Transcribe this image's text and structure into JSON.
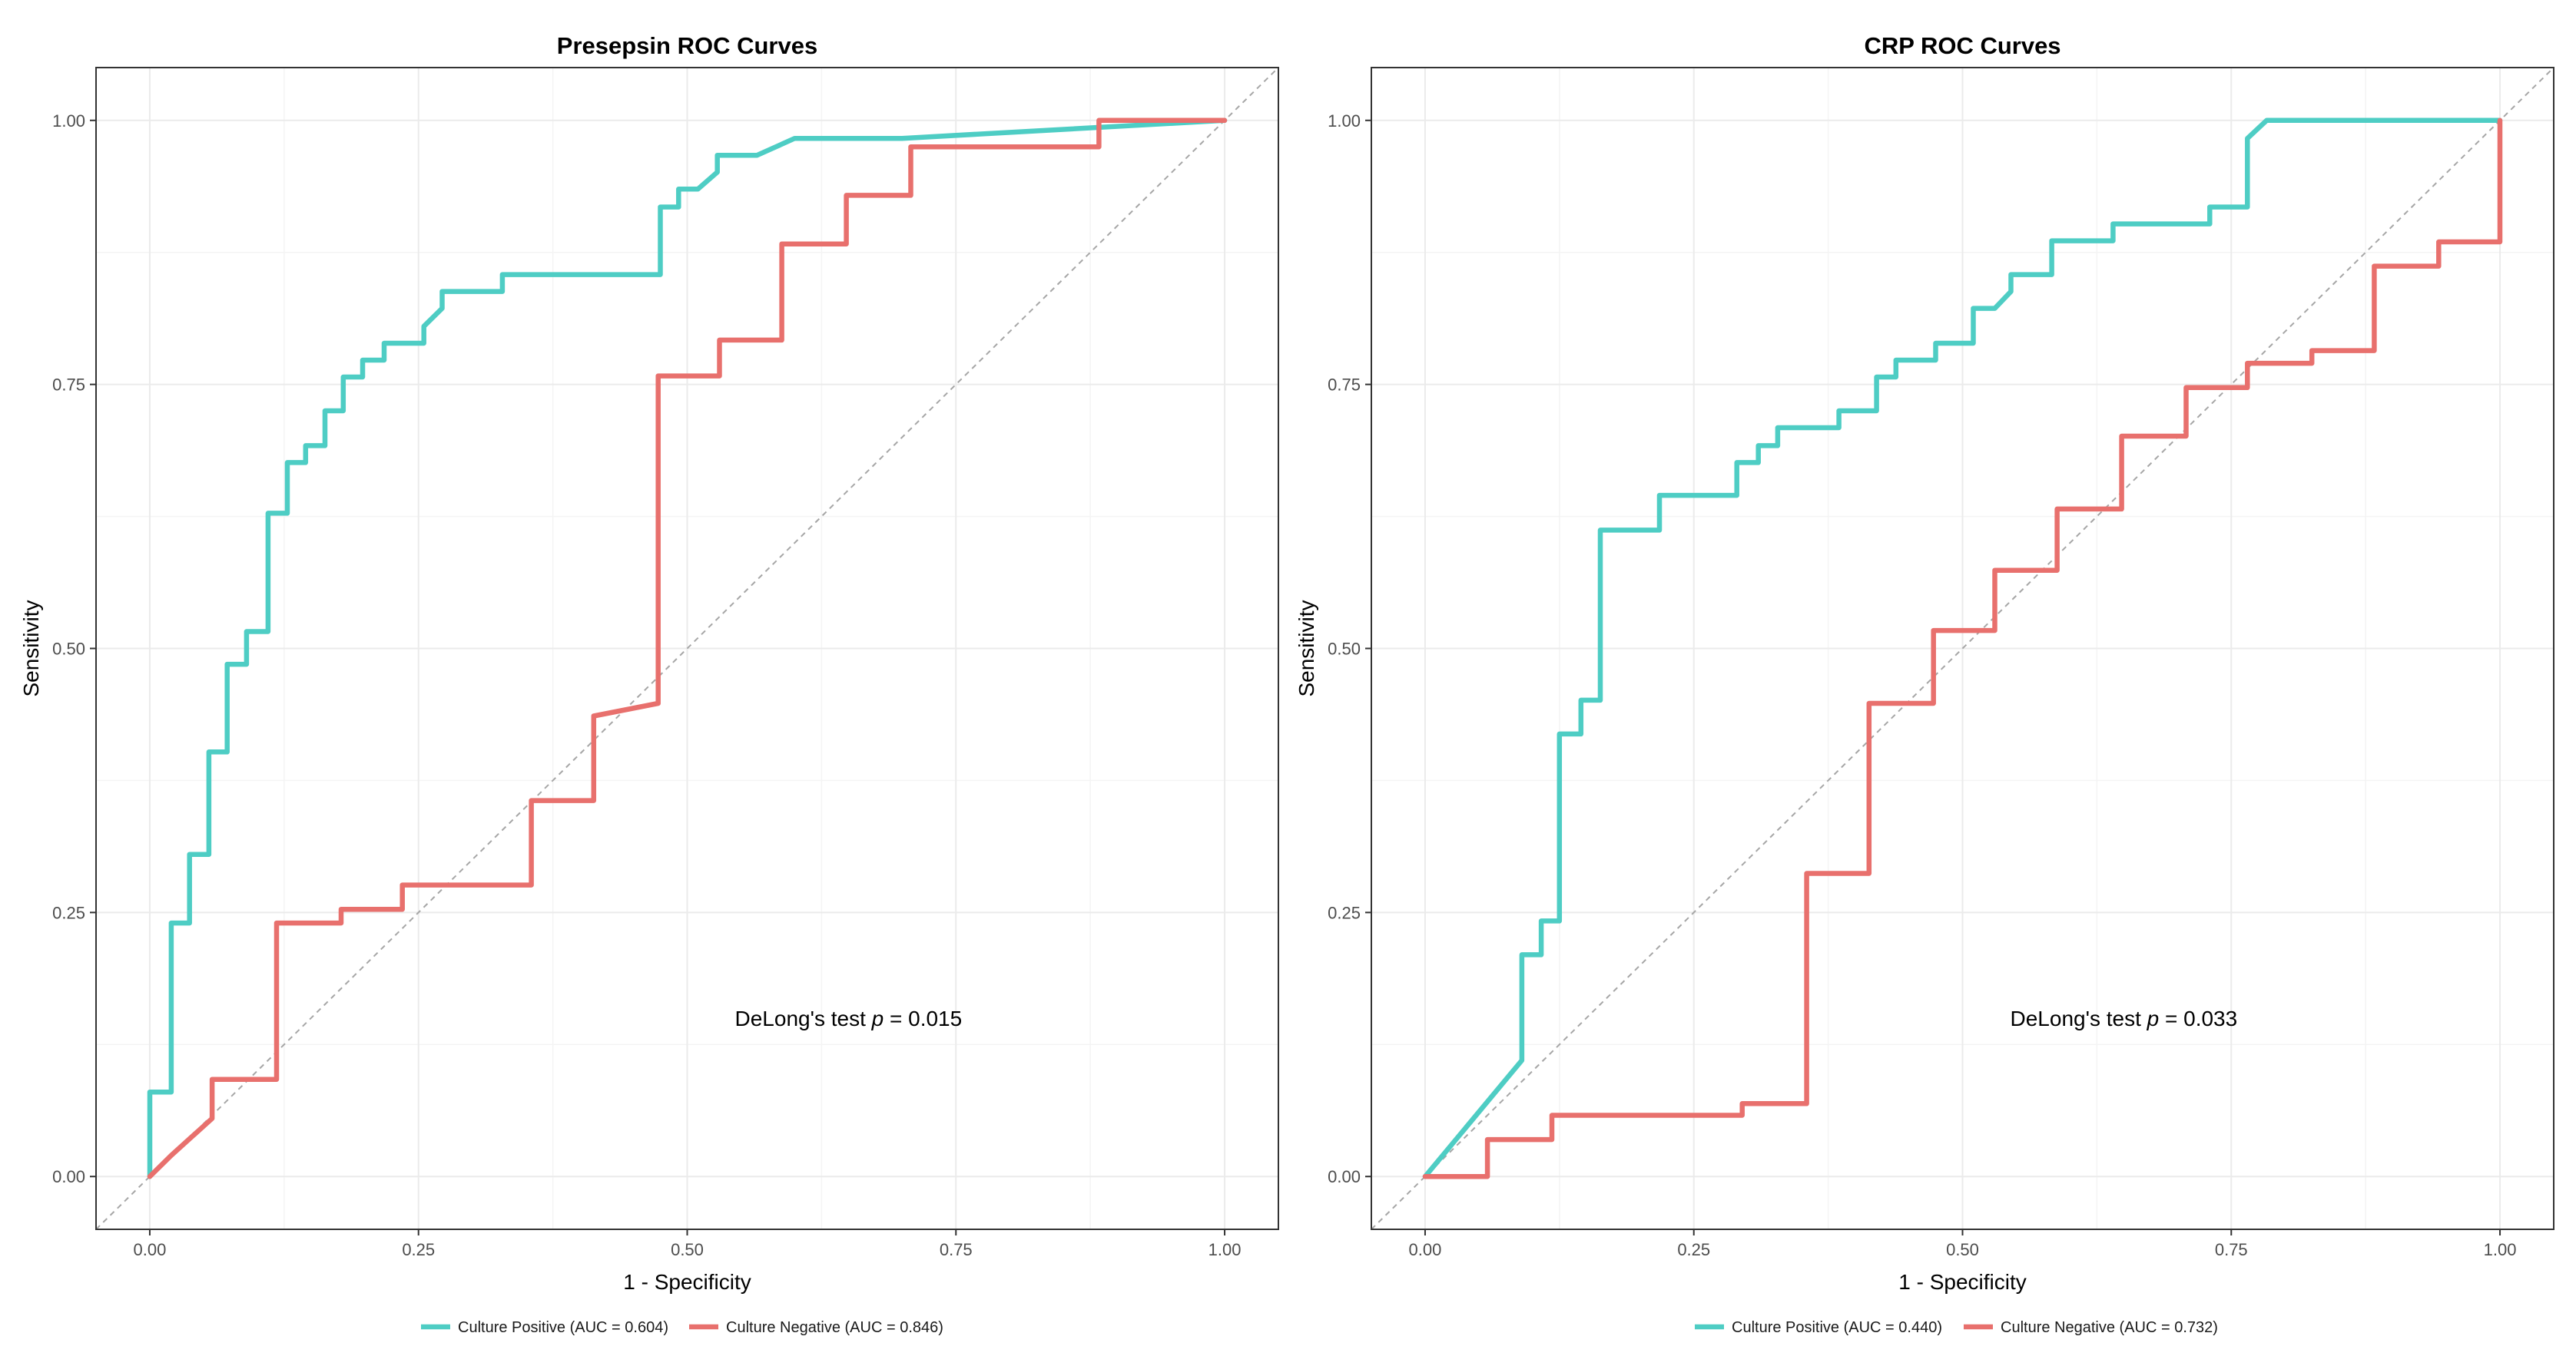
{
  "chart_data": [
    {
      "type": "line",
      "title": "Presepsin ROC Curves",
      "xlabel": "1 - Specificity",
      "ylabel": "Sensitivity",
      "xlim": [
        -0.05,
        1.05
      ],
      "ylim": [
        -0.05,
        1.05
      ],
      "xticks": [
        "0.00",
        "0.25",
        "0.50",
        "0.75",
        "1.00"
      ],
      "yticks": [
        "0.00",
        "0.25",
        "0.50",
        "0.75",
        "1.00"
      ],
      "grid": true,
      "diagonal_reference": true,
      "legend_position": "bottom",
      "annotation": {
        "prefix": "DeLong's test ",
        "p": "p",
        "suffix": " = 0.015",
        "x": 0.65,
        "y": 0.15
      },
      "series": [
        {
          "name": "Culture Positive (AUC = 0.604)",
          "color": "#4ECDC4",
          "points": [
            [
              0,
              0
            ],
            [
              0,
              0.08
            ],
            [
              0.02,
              0.08
            ],
            [
              0.02,
              0.24
            ],
            [
              0.037,
              0.24
            ],
            [
              0.037,
              0.305
            ],
            [
              0.055,
              0.305
            ],
            [
              0.055,
              0.402
            ],
            [
              0.072,
              0.402
            ],
            [
              0.072,
              0.485
            ],
            [
              0.09,
              0.485
            ],
            [
              0.09,
              0.516
            ],
            [
              0.11,
              0.516
            ],
            [
              0.11,
              0.628
            ],
            [
              0.128,
              0.628
            ],
            [
              0.128,
              0.676
            ],
            [
              0.145,
              0.676
            ],
            [
              0.145,
              0.692
            ],
            [
              0.163,
              0.692
            ],
            [
              0.163,
              0.725
            ],
            [
              0.18,
              0.725
            ],
            [
              0.18,
              0.757
            ],
            [
              0.198,
              0.757
            ],
            [
              0.198,
              0.773
            ],
            [
              0.218,
              0.773
            ],
            [
              0.218,
              0.789
            ],
            [
              0.255,
              0.789
            ],
            [
              0.255,
              0.805
            ],
            [
              0.272,
              0.822
            ],
            [
              0.272,
              0.838
            ],
            [
              0.328,
              0.838
            ],
            [
              0.328,
              0.854
            ],
            [
              0.475,
              0.854
            ],
            [
              0.475,
              0.918
            ],
            [
              0.492,
              0.918
            ],
            [
              0.492,
              0.935
            ],
            [
              0.51,
              0.935
            ],
            [
              0.528,
              0.951
            ],
            [
              0.528,
              0.967
            ],
            [
              0.565,
              0.967
            ],
            [
              0.6,
              0.983
            ],
            [
              0.7,
              0.983
            ],
            [
              1.0,
              1.0
            ]
          ]
        },
        {
          "name": "Culture Negative (AUC = 0.846)",
          "color": "#E8706D",
          "points": [
            [
              0,
              0
            ],
            [
              0.02,
              0.02
            ],
            [
              0.058,
              0.055
            ],
            [
              0.058,
              0.092
            ],
            [
              0.118,
              0.092
            ],
            [
              0.118,
              0.24
            ],
            [
              0.178,
              0.24
            ],
            [
              0.178,
              0.253
            ],
            [
              0.235,
              0.253
            ],
            [
              0.235,
              0.276
            ],
            [
              0.355,
              0.276
            ],
            [
              0.355,
              0.356
            ],
            [
              0.413,
              0.356
            ],
            [
              0.413,
              0.436
            ],
            [
              0.473,
              0.448
            ],
            [
              0.473,
              0.758
            ],
            [
              0.53,
              0.758
            ],
            [
              0.53,
              0.792
            ],
            [
              0.588,
              0.792
            ],
            [
              0.588,
              0.883
            ],
            [
              0.648,
              0.883
            ],
            [
              0.648,
              0.929
            ],
            [
              0.708,
              0.929
            ],
            [
              0.708,
              0.975
            ],
            [
              0.883,
              0.975
            ],
            [
              0.883,
              1.0
            ],
            [
              1.0,
              1.0
            ]
          ]
        }
      ]
    },
    {
      "type": "line",
      "title": "CRP ROC Curves",
      "xlabel": "1 - Specificity",
      "ylabel": "Sensitivity",
      "xlim": [
        -0.05,
        1.05
      ],
      "ylim": [
        -0.05,
        1.05
      ],
      "xticks": [
        "0.00",
        "0.25",
        "0.50",
        "0.75",
        "1.00"
      ],
      "yticks": [
        "0.00",
        "0.25",
        "0.50",
        "0.75",
        "1.00"
      ],
      "grid": true,
      "diagonal_reference": true,
      "legend_position": "bottom",
      "annotation": {
        "prefix": "DeLong's test ",
        "p": "p",
        "suffix": " = 0.033",
        "x": 0.65,
        "y": 0.15
      },
      "series": [
        {
          "name": "Culture Positive (AUC = 0.440)",
          "color": "#4ECDC4",
          "points": [
            [
              0,
              0
            ],
            [
              0.09,
              0.11
            ],
            [
              0.09,
              0.21
            ],
            [
              0.108,
              0.21
            ],
            [
              0.108,
              0.242
            ],
            [
              0.125,
              0.242
            ],
            [
              0.125,
              0.419
            ],
            [
              0.145,
              0.419
            ],
            [
              0.145,
              0.451
            ],
            [
              0.163,
              0.451
            ],
            [
              0.163,
              0.612
            ],
            [
              0.218,
              0.612
            ],
            [
              0.218,
              0.645
            ],
            [
              0.29,
              0.645
            ],
            [
              0.29,
              0.676
            ],
            [
              0.31,
              0.676
            ],
            [
              0.31,
              0.692
            ],
            [
              0.328,
              0.692
            ],
            [
              0.328,
              0.709
            ],
            [
              0.385,
              0.709
            ],
            [
              0.385,
              0.725
            ],
            [
              0.42,
              0.725
            ],
            [
              0.42,
              0.757
            ],
            [
              0.438,
              0.757
            ],
            [
              0.438,
              0.773
            ],
            [
              0.475,
              0.773
            ],
            [
              0.475,
              0.789
            ],
            [
              0.51,
              0.789
            ],
            [
              0.51,
              0.822
            ],
            [
              0.53,
              0.822
            ],
            [
              0.545,
              0.838
            ],
            [
              0.545,
              0.854
            ],
            [
              0.583,
              0.854
            ],
            [
              0.583,
              0.886
            ],
            [
              0.64,
              0.886
            ],
            [
              0.64,
              0.902
            ],
            [
              0.73,
              0.902
            ],
            [
              0.73,
              0.918
            ],
            [
              0.765,
              0.918
            ],
            [
              0.765,
              0.983
            ],
            [
              0.783,
              1.0
            ],
            [
              1.0,
              1.0
            ]
          ]
        },
        {
          "name": "Culture Negative (AUC = 0.732)",
          "color": "#E8706D",
          "points": [
            [
              0,
              0
            ],
            [
              0.058,
              0
            ],
            [
              0.058,
              0.035
            ],
            [
              0.118,
              0.035
            ],
            [
              0.118,
              0.058
            ],
            [
              0.295,
              0.058
            ],
            [
              0.295,
              0.069
            ],
            [
              0.355,
              0.069
            ],
            [
              0.355,
              0.287
            ],
            [
              0.413,
              0.287
            ],
            [
              0.413,
              0.448
            ],
            [
              0.473,
              0.448
            ],
            [
              0.473,
              0.517
            ],
            [
              0.53,
              0.517
            ],
            [
              0.53,
              0.574
            ],
            [
              0.588,
              0.574
            ],
            [
              0.588,
              0.632
            ],
            [
              0.648,
              0.632
            ],
            [
              0.648,
              0.701
            ],
            [
              0.708,
              0.701
            ],
            [
              0.708,
              0.747
            ],
            [
              0.765,
              0.747
            ],
            [
              0.765,
              0.77
            ],
            [
              0.825,
              0.77
            ],
            [
              0.825,
              0.782
            ],
            [
              0.883,
              0.782
            ],
            [
              0.883,
              0.862
            ],
            [
              0.943,
              0.862
            ],
            [
              0.943,
              0.885
            ],
            [
              1.0,
              0.885
            ],
            [
              1.0,
              1.0
            ]
          ]
        }
      ]
    }
  ]
}
